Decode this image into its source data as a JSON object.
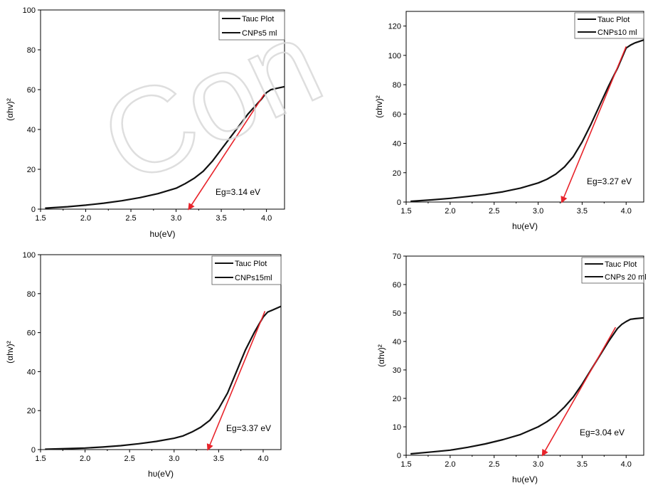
{
  "watermark": {
    "text": "Con",
    "color": "#d9d9d9"
  },
  "colors": {
    "curve": "#111111",
    "fit": "#e8232a",
    "axis": "#000000"
  },
  "chart_data": [
    {
      "type": "line",
      "xlabel": "hυ(eV)",
      "ylabel": "(αhv)²",
      "xlim": [
        1.5,
        4.2
      ],
      "ylim": [
        0,
        100
      ],
      "xticks": [
        "1.5",
        "2.0",
        "2.5",
        "3.0",
        "3.5",
        "4.0"
      ],
      "yticks": [
        "0",
        "20",
        "40",
        "60",
        "80",
        "100"
      ],
      "legend": [
        "Tauc Plot",
        "CNPs5 ml"
      ],
      "legend_position": "top-right",
      "annotation": "Eg=3.14 eV",
      "band_gap": 3.14,
      "series": [
        {
          "name": "Tauc Plot",
          "x": [
            1.55,
            1.8,
            2.0,
            2.2,
            2.4,
            2.6,
            2.8,
            3.0,
            3.1,
            3.2,
            3.3,
            3.4,
            3.5,
            3.6,
            3.7,
            3.8,
            3.9,
            3.95,
            4.0,
            4.05,
            4.1,
            4.2
          ],
          "y": [
            0.5,
            1.2,
            2.0,
            3.0,
            4.2,
            5.8,
            7.8,
            10.5,
            12.8,
            15.5,
            19.0,
            24.0,
            30.0,
            36.0,
            42.0,
            48.0,
            53.0,
            55.5,
            58.5,
            60.0,
            60.5,
            61.5
          ]
        }
      ],
      "fit_line": {
        "x": [
          3.14,
          3.98
        ],
        "y": [
          0,
          58
        ]
      }
    },
    {
      "type": "line",
      "xlabel": "hυ(eV)",
      "ylabel": "(αhv)²",
      "xlim": [
        1.5,
        4.2
      ],
      "ylim": [
        0,
        130
      ],
      "xticks": [
        "1.5",
        "2.0",
        "2.5",
        "3.0",
        "3.5",
        "4.0"
      ],
      "yticks": [
        "0",
        "20",
        "40",
        "60",
        "80",
        "100",
        "120"
      ],
      "legend": [
        "Tauc Plot",
        "CNPs10 ml"
      ],
      "legend_position": "top-right",
      "annotation": "Eg=3.27 eV",
      "band_gap": 3.27,
      "series": [
        {
          "name": "Tauc Plot",
          "x": [
            1.55,
            1.8,
            2.0,
            2.2,
            2.4,
            2.6,
            2.8,
            3.0,
            3.1,
            3.2,
            3.3,
            3.4,
            3.5,
            3.6,
            3.7,
            3.8,
            3.9,
            3.95,
            4.0,
            4.05,
            4.1,
            4.2
          ],
          "y": [
            0.5,
            1.5,
            2.5,
            3.8,
            5.2,
            7.0,
            9.5,
            13.0,
            15.5,
            19.0,
            24.0,
            31.0,
            41.0,
            53.0,
            66.0,
            79.0,
            91.0,
            98.0,
            105.0,
            107.0,
            108.5,
            110.5
          ]
        }
      ],
      "fit_line": {
        "x": [
          3.27,
          4.0
        ],
        "y": [
          0,
          106
        ]
      }
    },
    {
      "type": "line",
      "xlabel": "hυ(eV)",
      "ylabel": "(αhv)²",
      "xlim": [
        1.5,
        4.2
      ],
      "ylim": [
        0,
        100
      ],
      "xticks": [
        "1.5",
        "2.0",
        "2.5",
        "3.0",
        "3.5",
        "4.0"
      ],
      "yticks": [
        "0",
        "20",
        "40",
        "60",
        "80",
        "100"
      ],
      "legend": [
        "Tauc Plot",
        "CNPs15ml"
      ],
      "legend_position": "top-right",
      "annotation": "Eg=3.37 eV",
      "band_gap": 3.37,
      "series": [
        {
          "name": "Tauc Plot",
          "x": [
            1.55,
            1.8,
            2.0,
            2.2,
            2.4,
            2.6,
            2.8,
            3.0,
            3.1,
            3.2,
            3.3,
            3.4,
            3.5,
            3.6,
            3.7,
            3.8,
            3.9,
            3.95,
            4.0,
            4.05,
            4.1,
            4.2
          ],
          "y": [
            0.2,
            0.5,
            0.8,
            1.3,
            2.0,
            3.0,
            4.2,
            5.8,
            7.0,
            9.0,
            11.5,
            15.0,
            21.0,
            29.0,
            40.0,
            51.0,
            60.0,
            64.0,
            68.0,
            70.5,
            71.5,
            73.5
          ]
        }
      ],
      "fit_line": {
        "x": [
          3.38,
          4.02
        ],
        "y": [
          0,
          71
        ]
      }
    },
    {
      "type": "line",
      "xlabel": "hυ(eV)",
      "ylabel": "(αhv)²",
      "xlim": [
        1.5,
        4.2
      ],
      "ylim": [
        0,
        70
      ],
      "xticks": [
        "1.5",
        "2.0",
        "2.5",
        "3.0",
        "3.5",
        "4.0"
      ],
      "yticks": [
        "0",
        "10",
        "20",
        "30",
        "40",
        "50",
        "60",
        "70"
      ],
      "legend": [
        "Tauc Plot",
        "CNPs 20 ml"
      ],
      "legend_position": "top-right",
      "annotation": "Eg=3.04 eV",
      "band_gap": 3.04,
      "series": [
        {
          "name": "Tauc Plot",
          "x": [
            1.55,
            1.8,
            2.0,
            2.2,
            2.4,
            2.6,
            2.8,
            3.0,
            3.1,
            3.2,
            3.3,
            3.4,
            3.5,
            3.6,
            3.7,
            3.8,
            3.9,
            3.95,
            4.0,
            4.05,
            4.1,
            4.2
          ],
          "y": [
            0.5,
            1.2,
            1.8,
            2.8,
            4.0,
            5.5,
            7.3,
            10.0,
            11.8,
            14.0,
            17.0,
            20.5,
            25.0,
            30.0,
            35.0,
            40.0,
            44.5,
            46.0,
            47.0,
            47.8,
            48.0,
            48.3
          ]
        }
      ],
      "fit_line": {
        "x": [
          3.05,
          3.88
        ],
        "y": [
          0,
          45
        ]
      }
    }
  ]
}
